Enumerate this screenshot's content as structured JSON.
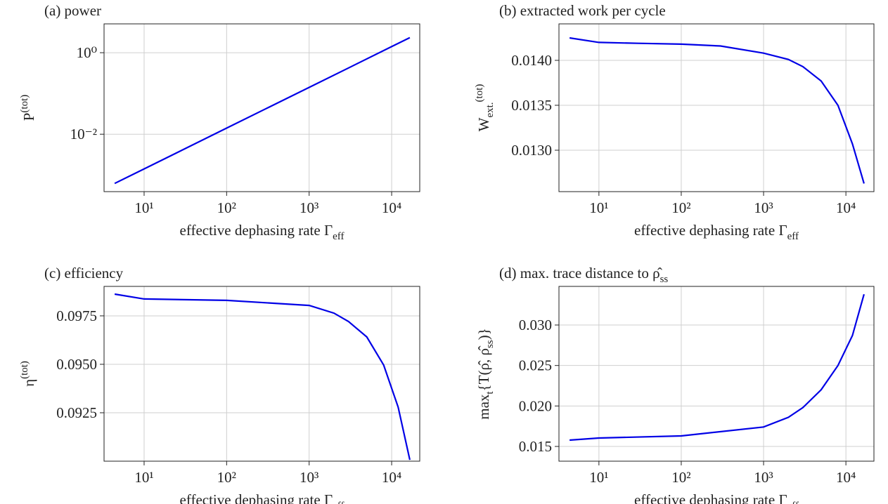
{
  "chart_data": [
    {
      "type": "line",
      "title": [
        {
          "text": "(a) power"
        }
      ],
      "xlabel": [
        {
          "text": "effective dephasing rate Γ"
        },
        {
          "text": "eff",
          "shift": "sub"
        }
      ],
      "ylabel": [
        {
          "text": "P"
        },
        {
          "text": "(tot)",
          "shift": "sup"
        }
      ],
      "xscale": "log",
      "yscale": "log",
      "grid": true,
      "color": "#0000e6",
      "xlim": [
        3.27,
        21900
      ],
      "ylim": [
        0.00039,
        5.1
      ],
      "xticks": [
        {
          "value": 10,
          "label": "10¹"
        },
        {
          "value": 100,
          "label": "10²"
        },
        {
          "value": 1000,
          "label": "10³"
        },
        {
          "value": 10000,
          "label": "10⁴"
        }
      ],
      "yticks": [
        {
          "value": 0.01,
          "label": "10⁻²"
        },
        {
          "value": 1,
          "label": "10⁰"
        }
      ],
      "x": [
        4.4,
        10,
        30,
        100,
        300,
        1000,
        3000,
        10000,
        16600
      ],
      "series": [
        {
          "values": [
            0.00062,
            0.00141,
            0.00423,
            0.0141,
            0.0423,
            0.141,
            0.423,
            1.41,
            2.34
          ]
        }
      ]
    },
    {
      "type": "line",
      "title": [
        {
          "text": "(b) extracted work per cycle"
        }
      ],
      "xlabel": [
        {
          "text": "effective dephasing rate Γ"
        },
        {
          "text": "eff",
          "shift": "sub"
        }
      ],
      "ylabel": [
        {
          "text": "W"
        },
        {
          "text": "ext.",
          "shift": "sub"
        },
        {
          "text": "(tot)",
          "shift": "sup"
        }
      ],
      "xscale": "log",
      "yscale": "linear",
      "grid": true,
      "color": "#0000e6",
      "xlim": [
        3.27,
        21900
      ],
      "ylim": [
        0.012539,
        0.014406
      ],
      "xticks": [
        {
          "value": 10,
          "label": "10¹"
        },
        {
          "value": 100,
          "label": "10²"
        },
        {
          "value": 1000,
          "label": "10³"
        },
        {
          "value": 10000,
          "label": "10⁴"
        }
      ],
      "yticks": [
        {
          "value": 0.013,
          "label": "0.0130"
        },
        0.0135,
        {
          "value": 0.014,
          "label": "0.0140"
        }
      ],
      "x": [
        4.4,
        10,
        30,
        100,
        300,
        1000,
        2000,
        3000,
        5000,
        8000,
        12000,
        16600
      ],
      "series": [
        {
          "values": [
            0.01425,
            0.0142,
            0.01419,
            0.01418,
            0.01416,
            0.01408,
            0.01401,
            0.01393,
            0.01377,
            0.0135,
            0.01307,
            0.01263
          ]
        }
      ]
    },
    {
      "type": "line",
      "title": [
        {
          "text": "(c) efficiency"
        }
      ],
      "xlabel": [
        {
          "text": "effective dephasing rate Γ"
        },
        {
          "text": "eff",
          "shift": "sub"
        }
      ],
      "ylabel": [
        {
          "text": "η"
        },
        {
          "text": "(tot)",
          "shift": "sup"
        }
      ],
      "xscale": "log",
      "yscale": "linear",
      "grid": true,
      "color": "#0000e6",
      "xlim": [
        3.27,
        21900
      ],
      "ylim": [
        0.09,
        0.09902
      ],
      "xticks": [
        {
          "value": 10,
          "label": "10¹"
        },
        {
          "value": 100,
          "label": "10²"
        },
        {
          "value": 1000,
          "label": "10³"
        },
        {
          "value": 10000,
          "label": "10⁴"
        }
      ],
      "yticks": [
        0.0925,
        {
          "value": 0.095,
          "label": "0.0950"
        },
        0.0975
      ],
      "x": [
        4.4,
        10,
        100,
        1000,
        2000,
        3000,
        5000,
        8000,
        12000,
        16600
      ],
      "series": [
        {
          "values": [
            0.09862,
            0.09837,
            0.0983,
            0.09804,
            0.09764,
            0.09721,
            0.09641,
            0.09496,
            0.09279,
            0.09007
          ]
        }
      ]
    },
    {
      "type": "line",
      "title": [
        {
          "text": "(d) max. trace distance to ρ̂"
        },
        {
          "text": "ss",
          "shift": "sub"
        }
      ],
      "xlabel": [
        {
          "text": "effective dephasing rate Γ"
        },
        {
          "text": "eff",
          "shift": "sub"
        }
      ],
      "ylabel": [
        {
          "text": "max"
        },
        {
          "text": "t",
          "shift": "sub"
        },
        {
          "text": "{T(ρ̂, ρ̂"
        },
        {
          "text": "ss",
          "shift": "sub"
        },
        {
          "text": ")}"
        }
      ],
      "xscale": "log",
      "yscale": "linear",
      "grid": true,
      "color": "#0000e6",
      "xlim": [
        3.27,
        21900
      ],
      "ylim": [
        0.01318,
        0.03477
      ],
      "xticks": [
        {
          "value": 10,
          "label": "10¹"
        },
        {
          "value": 100,
          "label": "10²"
        },
        {
          "value": 1000,
          "label": "10³"
        },
        {
          "value": 10000,
          "label": "10⁴"
        }
      ],
      "yticks": [
        0.015,
        {
          "value": 0.02,
          "label": "0.020"
        },
        0.025,
        {
          "value": 0.03,
          "label": "0.030"
        }
      ],
      "x": [
        4.4,
        10,
        100,
        1000,
        2000,
        3000,
        5000,
        8000,
        12000,
        16600
      ],
      "series": [
        {
          "values": [
            0.01578,
            0.01604,
            0.0163,
            0.0174,
            0.0186,
            0.0198,
            0.022,
            0.025,
            0.0287,
            0.0338
          ]
        }
      ]
    }
  ]
}
